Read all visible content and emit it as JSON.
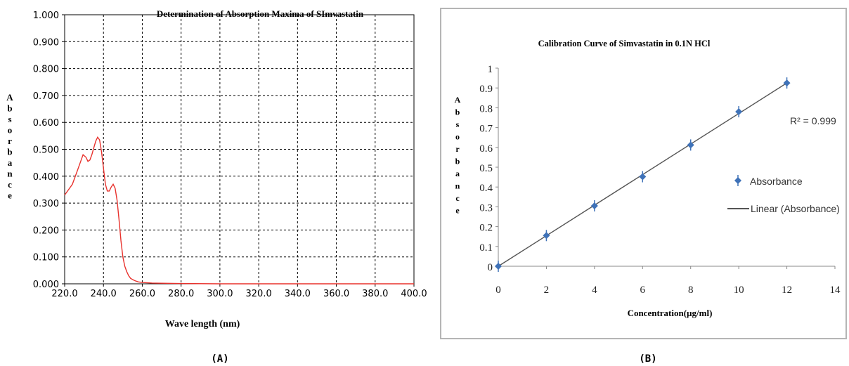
{
  "chart_data": [
    {
      "type": "line",
      "title": "Determination of Absorption Maxima of SImvastatin",
      "xlabel": "Wave length (nm)",
      "ylabel": "Absorbance",
      "xlim": [
        220,
        400
      ],
      "ylim": [
        0,
        1
      ],
      "x_ticks": [
        "220.0",
        "240.0",
        "260.0",
        "280.0",
        "300.0",
        "320.0",
        "340.0",
        "360.0",
        "380.0",
        "400.0"
      ],
      "y_ticks": [
        "0.000",
        "0.100",
        "0.200",
        "0.300",
        "0.400",
        "0.500",
        "0.600",
        "0.700",
        "0.800",
        "0.900",
        "1.000"
      ],
      "grid": true,
      "series": [
        {
          "color": "#e8322d",
          "x": [
            220,
            222,
            224,
            226,
            228,
            229.5,
            231,
            232,
            233,
            234,
            235,
            236,
            237,
            238,
            239,
            240,
            241,
            242,
            243,
            244,
            245,
            246,
            247,
            248,
            249,
            250,
            251,
            252,
            253,
            254,
            256,
            258,
            260,
            265,
            270,
            280,
            300,
            350,
            400
          ],
          "y": [
            0.33,
            0.35,
            0.37,
            0.41,
            0.45,
            0.48,
            0.47,
            0.455,
            0.46,
            0.48,
            0.505,
            0.53,
            0.545,
            0.535,
            0.49,
            0.43,
            0.37,
            0.345,
            0.345,
            0.36,
            0.37,
            0.355,
            0.31,
            0.24,
            0.16,
            0.1,
            0.065,
            0.045,
            0.03,
            0.02,
            0.012,
            0.007,
            0.005,
            0.003,
            0.002,
            0.001,
            0.0,
            0.0,
            0.0
          ]
        }
      ],
      "panel_label": "(A)"
    },
    {
      "type": "scatter",
      "title": "Calibration Curve of Simvastatin in 0.1N HCl",
      "xlabel": "Concentration(µg/ml)",
      "ylabel": "Absorbance",
      "xlim": [
        0,
        14
      ],
      "ylim": [
        0,
        1
      ],
      "x_ticks": [
        "0",
        "2",
        "4",
        "6",
        "8",
        "10",
        "12",
        "14"
      ],
      "y_ticks": [
        "0",
        "0.1",
        "0.2",
        "0.3",
        "0.4",
        "0.5",
        "0.6",
        "0.7",
        "0.8",
        "0.9",
        "1"
      ],
      "grid": false,
      "series": [
        {
          "name": "Absorbance",
          "color": "#3f72b8",
          "x": [
            0,
            2,
            4,
            6,
            8,
            10,
            12
          ],
          "y": [
            0.0,
            0.155,
            0.305,
            0.452,
            0.612,
            0.78,
            0.925
          ]
        },
        {
          "name": "Linear (Absorbance)",
          "color": "#555555",
          "x": [
            0,
            12
          ],
          "y": [
            0.0,
            0.925
          ]
        }
      ],
      "annotation": "R² = 0.999",
      "legend_position": "right",
      "panel_label": "(B)"
    }
  ]
}
